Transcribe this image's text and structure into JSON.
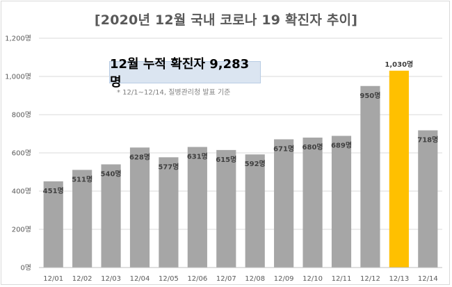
{
  "chart_data": {
    "type": "bar",
    "title": "[2020년 12월 국내 코로나 19 확진자 추이]",
    "callout": "12월 누적 확진자 9,283명",
    "note": "* 12/1~12/14, 질병관리청 발표 기준",
    "unit": "명",
    "categories": [
      "12/01",
      "12/02",
      "12/03",
      "12/04",
      "12/05",
      "12/06",
      "12/07",
      "12/08",
      "12/09",
      "12/10",
      "12/11",
      "12/12",
      "12/13",
      "12/14"
    ],
    "values": [
      451,
      511,
      540,
      628,
      577,
      631,
      615,
      592,
      671,
      680,
      689,
      950,
      1030,
      718
    ],
    "value_labels": [
      "451명",
      "511명",
      "540명",
      "628명",
      "577명",
      "631명",
      "615명",
      "592명",
      "671명",
      "680명",
      "689명",
      "950명",
      "1,030명",
      "718명"
    ],
    "ylim": [
      0,
      1200
    ],
    "yticks": [
      0,
      200,
      400,
      600,
      800,
      1000,
      1200
    ],
    "ytick_labels": [
      "0명",
      "200명",
      "400명",
      "600명",
      "800명",
      "1,000명",
      "1,200명"
    ],
    "grid": true,
    "colors": {
      "bar": "#a6a6a6",
      "highlight": "#ffc000",
      "grid": "#d9d9d9"
    },
    "highlight_index": 12
  }
}
